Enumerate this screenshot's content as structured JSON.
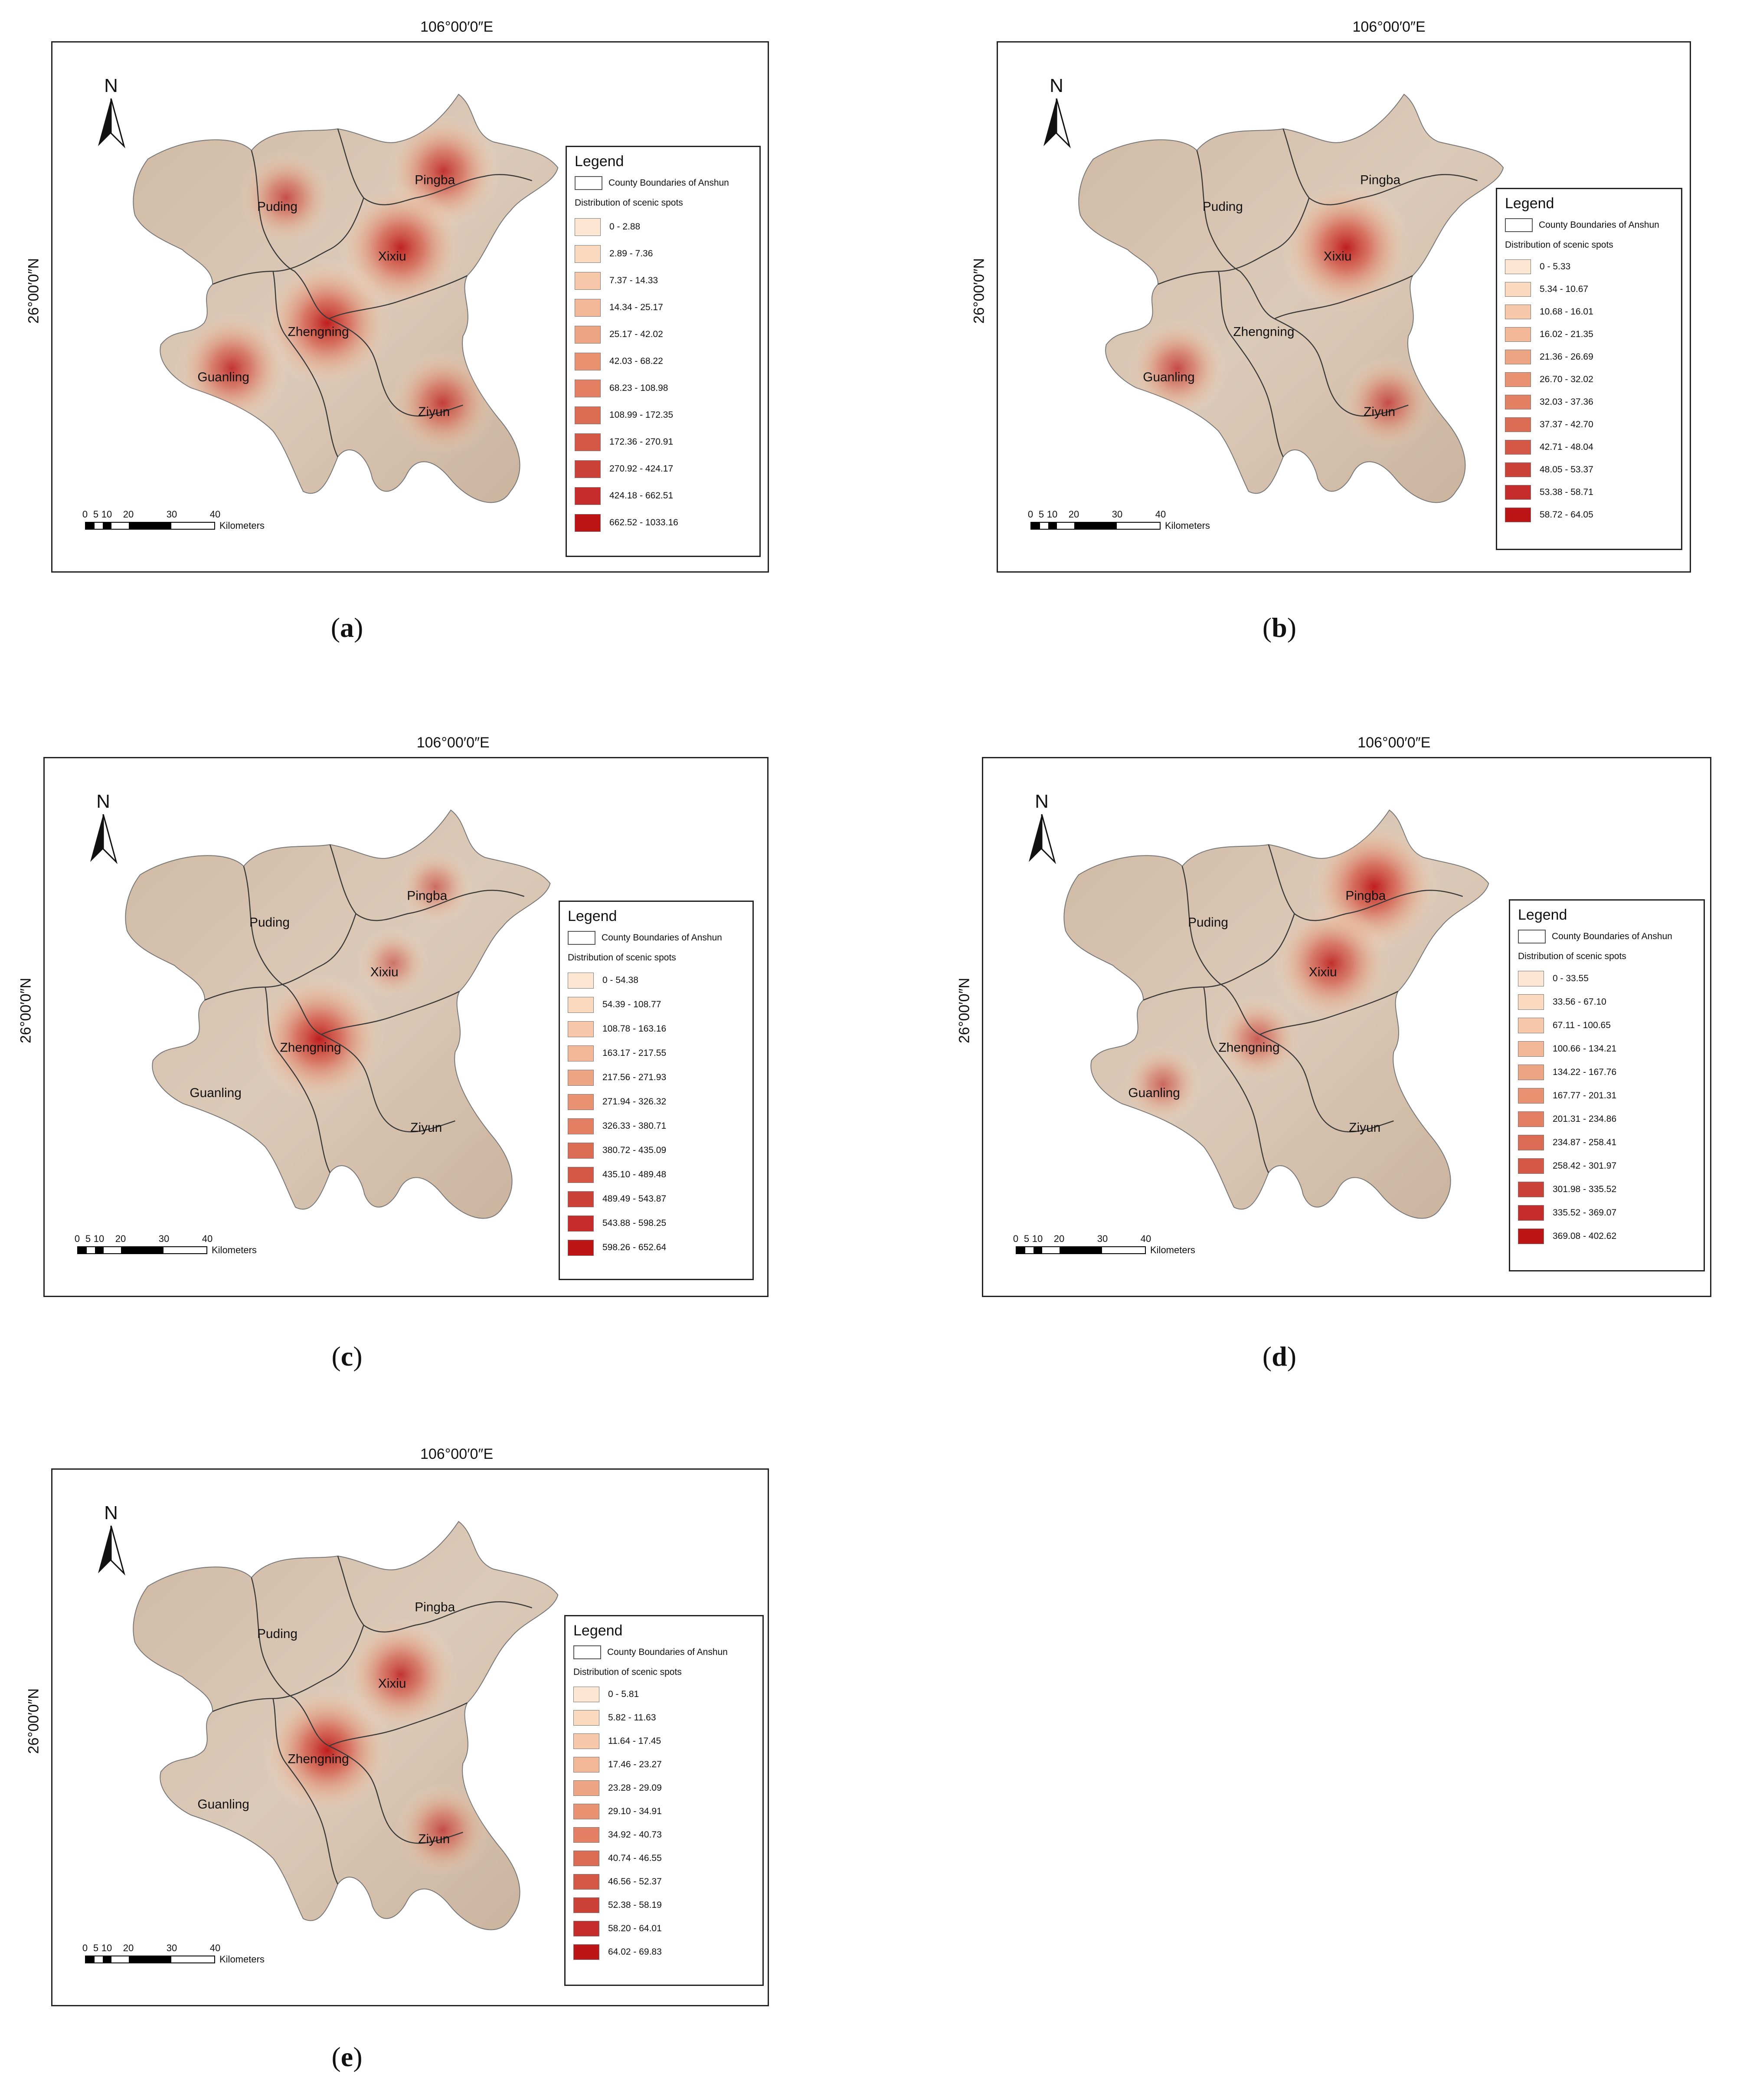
{
  "figure": {
    "top_coord": "106°00′0″E",
    "left_coord": "26°00′0″N",
    "legend_title": "Legend",
    "boundary_label": "County Boundaries of Anshun",
    "distribution_label": "Distribution of scenic spots",
    "north_label": "N",
    "scale_numbers": [
      "0",
      "5",
      "10",
      "20",
      "30",
      "40"
    ],
    "scale_unit": "Kilometers",
    "counties": [
      "Puding",
      "Pingba",
      "Xixiu",
      "Zhengning",
      "Guanling",
      "Ziyun"
    ]
  },
  "panels": [
    {
      "id": "a",
      "caption": "a",
      "classes": [
        "0 - 2.88",
        "2.89 - 7.36",
        "7.37 - 14.33",
        "14.34 - 25.17",
        "25.17 - 42.02",
        "42.03 - 68.22",
        "68.23 - 108.98",
        "108.99 - 172.35",
        "172.36 - 270.91",
        "270.92 - 424.17",
        "424.18 - 662.51",
        "662.52 - 1033.16"
      ],
      "hotspots": [
        {
          "near": "Pingba",
          "intensity": 0.8
        },
        {
          "near": "Xixiu",
          "intensity": 0.95
        },
        {
          "near": "Zhengning",
          "intensity": 1.0
        },
        {
          "near": "Guanling",
          "intensity": 0.8
        },
        {
          "near": "Puding",
          "intensity": 0.55
        },
        {
          "near": "Ziyun",
          "intensity": 0.7
        }
      ]
    },
    {
      "id": "b",
      "caption": "b",
      "classes": [
        "0 - 5.33",
        "5.34 - 10.67",
        "10.68 - 16.01",
        "16.02 - 21.35",
        "21.36 - 26.69",
        "26.70 - 32.02",
        "32.03 - 37.36",
        "37.37 - 42.70",
        "42.71 - 48.04",
        "48.05 - 53.37",
        "53.38 - 58.71",
        "58.72 - 64.05"
      ],
      "hotspots": [
        {
          "near": "Xixiu",
          "intensity": 1.0
        },
        {
          "near": "Guanling",
          "intensity": 0.6
        },
        {
          "near": "Ziyun",
          "intensity": 0.55
        }
      ]
    },
    {
      "id": "c",
      "caption": "c",
      "classes": [
        "0 - 54.38",
        "54.39 - 108.77",
        "108.78 - 163.16",
        "163.17 - 217.55",
        "217.56 - 271.93",
        "271.94 - 326.32",
        "326.33 - 380.71",
        "380.72 - 435.09",
        "435.10 - 489.48",
        "489.49 - 543.87",
        "543.88 - 598.25",
        "598.26 - 652.64"
      ],
      "hotspots": [
        {
          "near": "Zhengning",
          "intensity": 1.0
        },
        {
          "near": "Pingba",
          "intensity": 0.3
        },
        {
          "near": "Xixiu",
          "intensity": 0.25
        }
      ]
    },
    {
      "id": "d",
      "caption": "d",
      "classes": [
        "0 - 33.55",
        "33.56 - 67.10",
        "67.11 - 100.65",
        "100.66 - 134.21",
        "134.22 - 167.76",
        "167.77 - 201.31",
        "201.31 - 234.86",
        "234.87 - 258.41",
        "258.42 - 301.97",
        "301.98 - 335.52",
        "335.52 - 369.07",
        "369.08 - 402.62"
      ],
      "hotspots": [
        {
          "near": "Pingba",
          "intensity": 1.0
        },
        {
          "near": "Xixiu",
          "intensity": 0.85
        },
        {
          "near": "Zhengning",
          "intensity": 0.45
        },
        {
          "near": "Guanling",
          "intensity": 0.35
        }
      ]
    },
    {
      "id": "e",
      "caption": "e",
      "classes": [
        "0 - 5.81",
        "5.82 - 11.63",
        "11.64 - 17.45",
        "17.46 - 23.27",
        "23.28 - 29.09",
        "29.10 - 34.91",
        "34.92 - 40.73",
        "40.74 - 46.55",
        "46.56 - 52.37",
        "52.38 - 58.19",
        "58.20 - 64.01",
        "64.02 - 69.83"
      ],
      "hotspots": [
        {
          "near": "Zhengning",
          "intensity": 1.0
        },
        {
          "near": "Xixiu",
          "intensity": 0.8
        },
        {
          "near": "Ziyun",
          "intensity": 0.55
        }
      ]
    }
  ],
  "colors": {
    "class_ramp": [
      "#fde6d2",
      "#fbd9bf",
      "#f7c9aa",
      "#f3b898",
      "#eea584",
      "#e99272",
      "#e37f62",
      "#dc6b53",
      "#d55745",
      "#cd4238",
      "#c52c2b",
      "#bd1515"
    ],
    "terrain": "#d7c3af",
    "boundary": "#3a3a3a"
  }
}
